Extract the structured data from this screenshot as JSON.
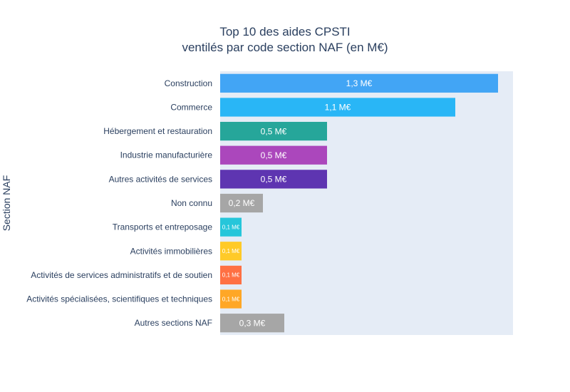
{
  "chart_data": {
    "type": "bar",
    "orientation": "horizontal",
    "title": "Top 10 des aides CPSTI",
    "subtitle": "ventilés par code section NAF (en M€)",
    "xlabel": "",
    "ylabel": "Section NAF",
    "xlim": [
      0,
      1.4
    ],
    "grid": false,
    "legend": "none",
    "categories": [
      "Construction",
      "Commerce",
      "Hébergement et restauration",
      "Industrie manufacturière",
      "Autres activités de services",
      "Non connu",
      "Transports et entreposage",
      "Activités immobilières",
      "Activités de services administratifs et de soutien",
      "Activités spécialisées, scientifiques et techniques",
      "Autres sections NAF"
    ],
    "values": [
      1.3,
      1.1,
      0.5,
      0.5,
      0.5,
      0.2,
      0.1,
      0.1,
      0.1,
      0.1,
      0.3
    ],
    "data_labels": [
      "1,3 M€",
      "1,1 M€",
      "0,5 M€",
      "0,5 M€",
      "0,5 M€",
      "0,2 M€",
      "0,1 M€",
      "0,1 M€",
      "0,1 M€",
      "0,1 M€",
      "0,3 M€"
    ],
    "colors": [
      "#42a5f5",
      "#29b6f6",
      "#26a69a",
      "#ab47bc",
      "#5e35b1",
      "#a6a6a6",
      "#26c6da",
      "#ffca28",
      "#ff7043",
      "#ffa726",
      "#a6a6a6"
    ]
  }
}
